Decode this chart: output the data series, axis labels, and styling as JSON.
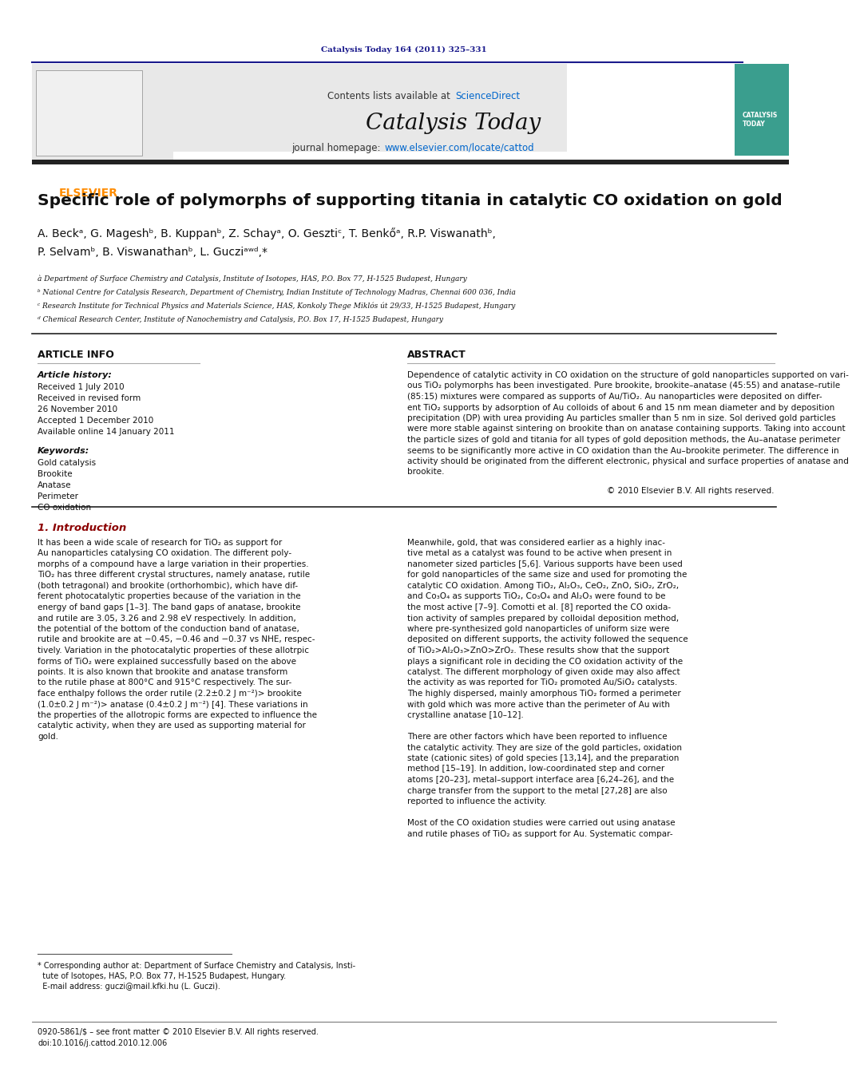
{
  "page_width": 9.92,
  "page_height": 13.23,
  "bg_color": "#ffffff",
  "journal_ref": "Catalysis Today 164 (2011) 325–331",
  "journal_ref_color": "#1a1a8c",
  "header_bar_color": "#1a1a8c",
  "header_bg_color": "#e8e8e8",
  "header_contents_text": "Contents lists available at ",
  "header_sciencedirect": "ScienceDirect",
  "sciencedirect_color": "#0066cc",
  "header_journal_name": "Catalysis Today",
  "header_homepage_text": "journal homepage: ",
  "header_homepage_url": "www.elsevier.com/locate/cattod",
  "homepage_url_color": "#0066cc",
  "elsevier_color": "#ff8c00",
  "bottom_bar_color": "#333333",
  "article_title": "Specific role of polymorphs of supporting titania in catalytic CO oxidation on gold",
  "authors": "A. Beckà, G. Mageshᵇ, B. Kuppanᵇ, Z. Schayà, O. Gesztiᶜ, T. Benkóà, R.P. Viswanathᵇ,\nP. Selvamᵇ, B. Viswanathanᵇ, L. Gucziᵃʰᵈ,*",
  "affil_a": "à Department of Surface Chemistry and Catalysis, Institute of Isotopes, HAS, P.O. Box 77, H-1525 Budapest, Hungary",
  "affil_b": "ᵇ National Centre for Catalysis Research, Department of Chemistry, Indian Institute of Technology Madras, Chennai 600 036, India",
  "affil_c": "ᶜ Research Institute for Technical Physics and Materials Science, HAS, Konkoly Thege Miklós út 29/33, H-1525 Budapest, Hungary",
  "affil_d": "ᵈ Chemical Research Center, Institute of Nanochemistry and Catalysis, P.O. Box 17, H-1525 Budapest, Hungary",
  "article_info_header": "ARTICLE INFO",
  "article_history_header": "Article history:",
  "received_1": "Received 1 July 2010",
  "received_revised": "Received in revised form\n26 November 2010",
  "accepted": "Accepted 1 December 2010",
  "available": "Available online 14 January 2011",
  "keywords_header": "Keywords:",
  "keywords": "Gold catalysis\nBrookite\nAnatase\nPerimeter\nCO oxidation",
  "abstract_header": "ABSTRACT",
  "abstract_text": "Dependence of catalytic activity in CO oxidation on the structure of gold nanoparticles supported on various TiO₂ polymorphs has been investigated. Pure brookite, brookite–anatase (45:55) and anatase–rutile (85:15) mixtures were compared as supports of Au/TiO₂. Au nanoparticles were deposited on different TiO₂ supports by adsorption of Au colloids of about 6 and 15 nm mean diameter and by deposition precipitation (DP) with urea providing Au particles smaller than 5 nm in size. Sol derived gold particles were more stable against sintering on brookite than on anatase containing supports. Taking into account the particle sizes of gold and titania for all types of gold deposition methods, the Au–anatase perimeter seems to be significantly more active in CO oxidation than the Au–brookite perimeter. The difference in activity should be originated from the different electronic, physical and surface properties of anatase and brookite.",
  "copyright": "© 2010 Elsevier B.V. All rights reserved.",
  "section1_header": "1. Introduction",
  "section1_col1": "It has been a wide scale of research for TiO₂ as support for Au nanoparticles catalysing CO oxidation. The different polymorphs of a compound have a large variation in their properties. TiO₂ has three different crystal structures, namely anatase, rutile (both tetragonal) and brookite (orthorhombic), which have different photocatalytic properties because of the variation in the energy of band gaps [1–3]. The band gaps of anatase, brookite and rutile are 3.05, 3.26 and 2.98 eV respectively. In addition, the potential of the bottom of the conduction band of anatase, rutile and brookite are at −0.45, −0.46 and −0.37 vs NHE, respectively. Variation in the photocatalytic properties of these allotropic forms of TiO₂ were explained successfully based on the above points. It is also known that brookite and anatase transform to the rutile phase at 800°C and 915°C respectively. The surface enthalpy follows the order rutile (2.2±0.2 J m⁻²)> brookite (1.0±0.2 J m⁻²)> anatase (0.4±0.2 J m⁻²) [4]. These variations in the properties of the allotropic forms are expected to influence the catalytic activity, when they are used as supporting material for gold.",
  "section1_col2": "Meanwhile, gold, that was considered earlier as a highly inactive metal as a catalyst was found to be active when present in nanometer sized particles [5,6]. Various supports have been used for gold nanoparticles of the same size and used for promoting the catalytic CO oxidation. Among TiO₂, Al₂O₃, CeO₂, ZnO, SiO₂, ZrO₂, and Co₃O₄ as supports TiO₂, Co₃O₄ and Al₂O₃ were found to be the most active [7–9]. Comotti et al. [8] reported the CO oxidation activity of samples prepared by colloidal deposition method, where pre-synthesized gold nanoparticles of uniform size were deposited on different supports, the activity followed the sequence of TiO₂>Al₂O₃>ZnO>ZrO₂. These results show that the support plays a significant role in deciding the CO oxidation activity of the catalyst. The different morphology of given oxide may also affect the activity as was reported for TiO₂ promoted Au/SiO₂ catalysts. The highly dispersed, mainly amorphous TiO₂ formed a perimeter with gold which was more active than the perimeter of Au with crystalline anatase [10–12].\n\nThere are other factors which have been reported to influence the catalytic activity. They are size of the gold particles, oxidation state (cationic sites) of gold species [13,14], and the preparation method [15–19]. In addition, low-coordinated step and corner atoms [20–23], metal–support interface area [6,24–26], and the charge transfer from the support to the metal [27,28] are also reported to influence the activity.\n\nMost of the CO oxidation studies were carried out using anatase and rutile phases of TiO₂ as support for Au. Systematic compar-",
  "footnote_text": "* Corresponding author at: Department of Surface Chemistry and Catalysis, Institute of Isotopes, HAS, P.O. Box 77, H-1525 Budapest, Hungary.\n  E-mail address: guczi@mail.kfki.hu (L. Guczi).",
  "footer_text": "0920-5861/$ – see front matter © 2010 Elsevier B.V. All rights reserved.\ndoi:10.1016/j.cattod.2010.12.006"
}
